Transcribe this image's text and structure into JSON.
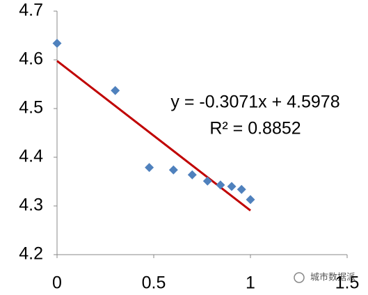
{
  "chart_data": {
    "type": "scatter",
    "x": [
      0,
      0.301,
      0.477,
      0.602,
      0.699,
      0.778,
      0.845,
      0.903,
      0.954,
      1.0
    ],
    "values": [
      4.634,
      4.537,
      4.379,
      4.374,
      4.364,
      4.351,
      4.343,
      4.34,
      4.334,
      4.313
    ],
    "color": "#4f81bd",
    "xlim": [
      0,
      1.5
    ],
    "xticks": [
      0,
      0.5,
      1,
      1.5
    ],
    "ylim": [
      4.2,
      4.7
    ],
    "yticks": [
      4.2,
      4.3,
      4.4,
      4.5,
      4.6,
      4.7
    ],
    "grid": false,
    "trendline": {
      "slope": -0.3071,
      "intercept": 4.5978,
      "color": "#c00000",
      "equation": "y = -0.3071x + 4.5978",
      "r2": "R² = 0.8852"
    },
    "watermark": "城市数据派"
  }
}
